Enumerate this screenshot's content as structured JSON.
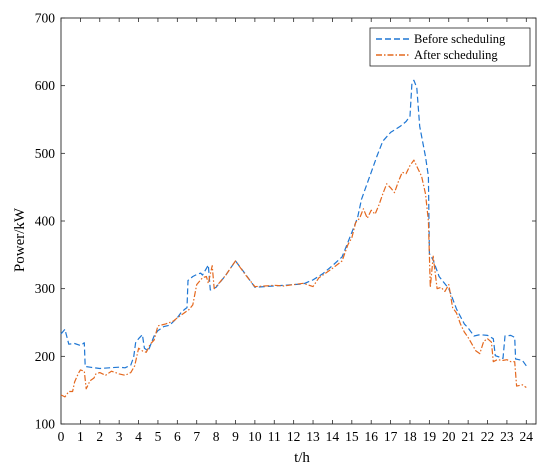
{
  "chart_data": {
    "type": "line",
    "title": "",
    "xlabel": "t/h",
    "ylabel": "Power/kW",
    "xlim": [
      0,
      24.5
    ],
    "ylim": [
      100,
      700
    ],
    "xticks": [
      0,
      1,
      2,
      3,
      4,
      5,
      6,
      7,
      8,
      9,
      10,
      11,
      12,
      13,
      14,
      15,
      16,
      17,
      18,
      19,
      20,
      21,
      22,
      23,
      24
    ],
    "yticks": [
      100,
      200,
      300,
      400,
      500,
      600,
      700
    ],
    "grid": false,
    "legend_position": "top-right",
    "series": [
      {
        "name": "Before scheduling",
        "color": "#1f77d4",
        "dash": "dashed",
        "points": [
          [
            0,
            233
          ],
          [
            0.2,
            240
          ],
          [
            0.4,
            218
          ],
          [
            0.7,
            219
          ],
          [
            1.0,
            216
          ],
          [
            1.2,
            220
          ],
          [
            1.25,
            185
          ],
          [
            1.5,
            184
          ],
          [
            2.0,
            182
          ],
          [
            2.5,
            183
          ],
          [
            3.0,
            184
          ],
          [
            3.3,
            183
          ],
          [
            3.6,
            187
          ],
          [
            3.75,
            199
          ],
          [
            3.85,
            220
          ],
          [
            4.0,
            226
          ],
          [
            4.2,
            232
          ],
          [
            4.3,
            212
          ],
          [
            4.5,
            208
          ],
          [
            4.8,
            230
          ],
          [
            5.0,
            238
          ],
          [
            5.3,
            244
          ],
          [
            5.6,
            246
          ],
          [
            6.0,
            257
          ],
          [
            6.2,
            265
          ],
          [
            6.4,
            270
          ],
          [
            6.5,
            272
          ],
          [
            6.55,
            312
          ],
          [
            6.8,
            318
          ],
          [
            7.0,
            321
          ],
          [
            7.2,
            323
          ],
          [
            7.3,
            320
          ],
          [
            7.5,
            330
          ],
          [
            7.6,
            335
          ],
          [
            7.7,
            298
          ],
          [
            8.0,
            302
          ],
          [
            8.5,
            320
          ],
          [
            9.0,
            341
          ],
          [
            9.5,
            322
          ],
          [
            10.0,
            302
          ],
          [
            10.5,
            303
          ],
          [
            11.0,
            304
          ],
          [
            11.5,
            305
          ],
          [
            12.0,
            306
          ],
          [
            12.5,
            307
          ],
          [
            13.0,
            313
          ],
          [
            13.5,
            322
          ],
          [
            14.0,
            334
          ],
          [
            14.5,
            347
          ],
          [
            15.0,
            383
          ],
          [
            15.3,
            405
          ],
          [
            15.5,
            432
          ],
          [
            15.8,
            456
          ],
          [
            16.0,
            472
          ],
          [
            16.3,
            496
          ],
          [
            16.6,
            518
          ],
          [
            17.0,
            531
          ],
          [
            17.5,
            540
          ],
          [
            17.8,
            547
          ],
          [
            18.0,
            555
          ],
          [
            18.1,
            603
          ],
          [
            18.2,
            608
          ],
          [
            18.35,
            597
          ],
          [
            18.5,
            540
          ],
          [
            18.8,
            495
          ],
          [
            18.95,
            466
          ],
          [
            19.0,
            352
          ],
          [
            19.2,
            342
          ],
          [
            19.5,
            318
          ],
          [
            20.0,
            300
          ],
          [
            20.4,
            270
          ],
          [
            20.8,
            248
          ],
          [
            21.0,
            242
          ],
          [
            21.3,
            230
          ],
          [
            21.6,
            232
          ],
          [
            22.0,
            231
          ],
          [
            22.3,
            226
          ],
          [
            22.4,
            201
          ],
          [
            22.6,
            199
          ],
          [
            22.8,
            197
          ],
          [
            22.9,
            230
          ],
          [
            23.2,
            231
          ],
          [
            23.4,
            228
          ],
          [
            23.45,
            196
          ],
          [
            23.8,
            194
          ],
          [
            24.0,
            186
          ]
        ]
      },
      {
        "name": "After scheduling",
        "color": "#e4681e",
        "dash": "dashdot",
        "points": [
          [
            0,
            143
          ],
          [
            0.2,
            140
          ],
          [
            0.4,
            148
          ],
          [
            0.6,
            148
          ],
          [
            0.7,
            162
          ],
          [
            0.9,
            175
          ],
          [
            1.0,
            180
          ],
          [
            1.2,
            178
          ],
          [
            1.3,
            152
          ],
          [
            1.5,
            164
          ],
          [
            1.7,
            168
          ],
          [
            1.8,
            174
          ],
          [
            2.0,
            176
          ],
          [
            2.3,
            172
          ],
          [
            2.6,
            178
          ],
          [
            3.0,
            174
          ],
          [
            3.3,
            172
          ],
          [
            3.6,
            176
          ],
          [
            3.8,
            186
          ],
          [
            4.0,
            212
          ],
          [
            4.2,
            208
          ],
          [
            4.4,
            206
          ],
          [
            4.6,
            218
          ],
          [
            4.8,
            224
          ],
          [
            5.0,
            245
          ],
          [
            5.4,
            248
          ],
          [
            5.8,
            252
          ],
          [
            6.0,
            257
          ],
          [
            6.3,
            263
          ],
          [
            6.6,
            269
          ],
          [
            6.8,
            276
          ],
          [
            7.0,
            306
          ],
          [
            7.3,
            316
          ],
          [
            7.5,
            318
          ],
          [
            7.6,
            308
          ],
          [
            7.8,
            334
          ],
          [
            7.9,
            300
          ],
          [
            8.0,
            303
          ],
          [
            8.5,
            320
          ],
          [
            9.0,
            341
          ],
          [
            9.5,
            321
          ],
          [
            10.0,
            303
          ],
          [
            10.5,
            304
          ],
          [
            11.0,
            305
          ],
          [
            11.5,
            304
          ],
          [
            12.0,
            306
          ],
          [
            12.5,
            308
          ],
          [
            13.0,
            303
          ],
          [
            13.3,
            316
          ],
          [
            13.6,
            322
          ],
          [
            14.0,
            330
          ],
          [
            14.5,
            341
          ],
          [
            14.8,
            365
          ],
          [
            15.0,
            375
          ],
          [
            15.2,
            398
          ],
          [
            15.4,
            404
          ],
          [
            15.6,
            418
          ],
          [
            15.8,
            404
          ],
          [
            16.0,
            416
          ],
          [
            16.2,
            410
          ],
          [
            16.4,
            424
          ],
          [
            16.6,
            440
          ],
          [
            16.8,
            455
          ],
          [
            17.0,
            449
          ],
          [
            17.2,
            442
          ],
          [
            17.4,
            458
          ],
          [
            17.6,
            472
          ],
          [
            17.8,
            470
          ],
          [
            18.0,
            482
          ],
          [
            18.2,
            490
          ],
          [
            18.4,
            478
          ],
          [
            18.6,
            466
          ],
          [
            18.8,
            440
          ],
          [
            18.95,
            400
          ],
          [
            19.05,
            302
          ],
          [
            19.2,
            348
          ],
          [
            19.4,
            300
          ],
          [
            19.6,
            302
          ],
          [
            19.8,
            296
          ],
          [
            20.0,
            306
          ],
          [
            20.2,
            272
          ],
          [
            20.4,
            264
          ],
          [
            20.6,
            248
          ],
          [
            20.8,
            236
          ],
          [
            21.0,
            228
          ],
          [
            21.2,
            218
          ],
          [
            21.4,
            208
          ],
          [
            21.6,
            204
          ],
          [
            21.8,
            222
          ],
          [
            22.0,
            226
          ],
          [
            22.2,
            221
          ],
          [
            22.3,
            192
          ],
          [
            22.5,
            195
          ],
          [
            22.8,
            194
          ],
          [
            23.0,
            195
          ],
          [
            23.2,
            192
          ],
          [
            23.4,
            192
          ],
          [
            23.5,
            156
          ],
          [
            23.8,
            158
          ],
          [
            24.0,
            154
          ]
        ]
      }
    ]
  }
}
